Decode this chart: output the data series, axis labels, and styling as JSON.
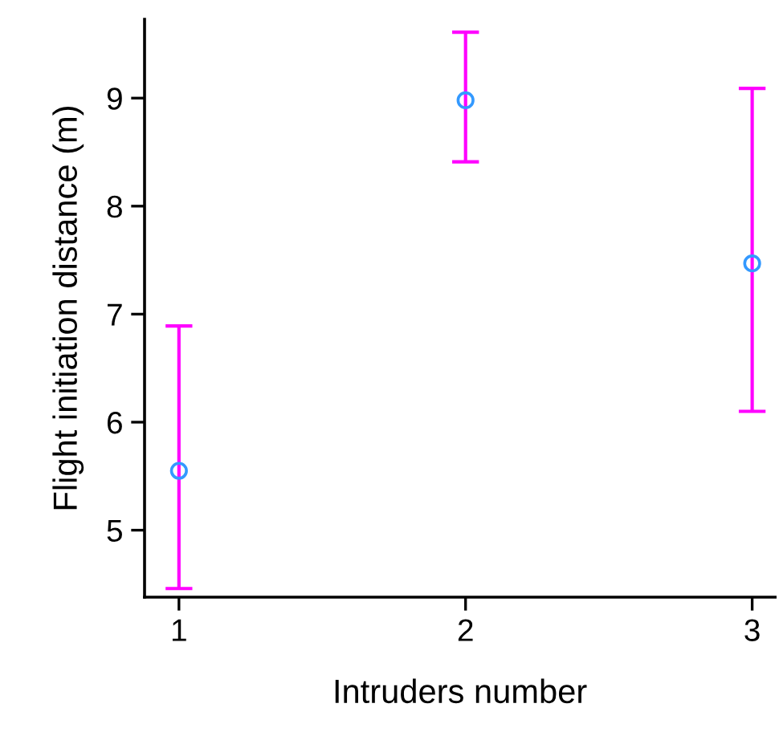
{
  "chart_data": {
    "type": "scatter",
    "xlabel": "Intruders number",
    "ylabel": "Flight initiation distance (m)",
    "x": [
      1,
      2,
      3
    ],
    "series": [
      {
        "color": "#3399ff",
        "values": [
          5.55,
          8.98,
          7.47
        ],
        "errors": [
          [
            4.46,
            6.89
          ],
          [
            8.41,
            9.61
          ],
          [
            6.1,
            9.09
          ]
        ]
      }
    ],
    "xlim": [
      0.88,
      3.08
    ],
    "xticks": [
      1,
      2,
      3
    ],
    "ylim": [
      4.38,
      9.73
    ],
    "yticks": [
      5,
      6,
      7,
      8,
      9
    ],
    "grid": false,
    "marker": "circle",
    "legend": false
  }
}
